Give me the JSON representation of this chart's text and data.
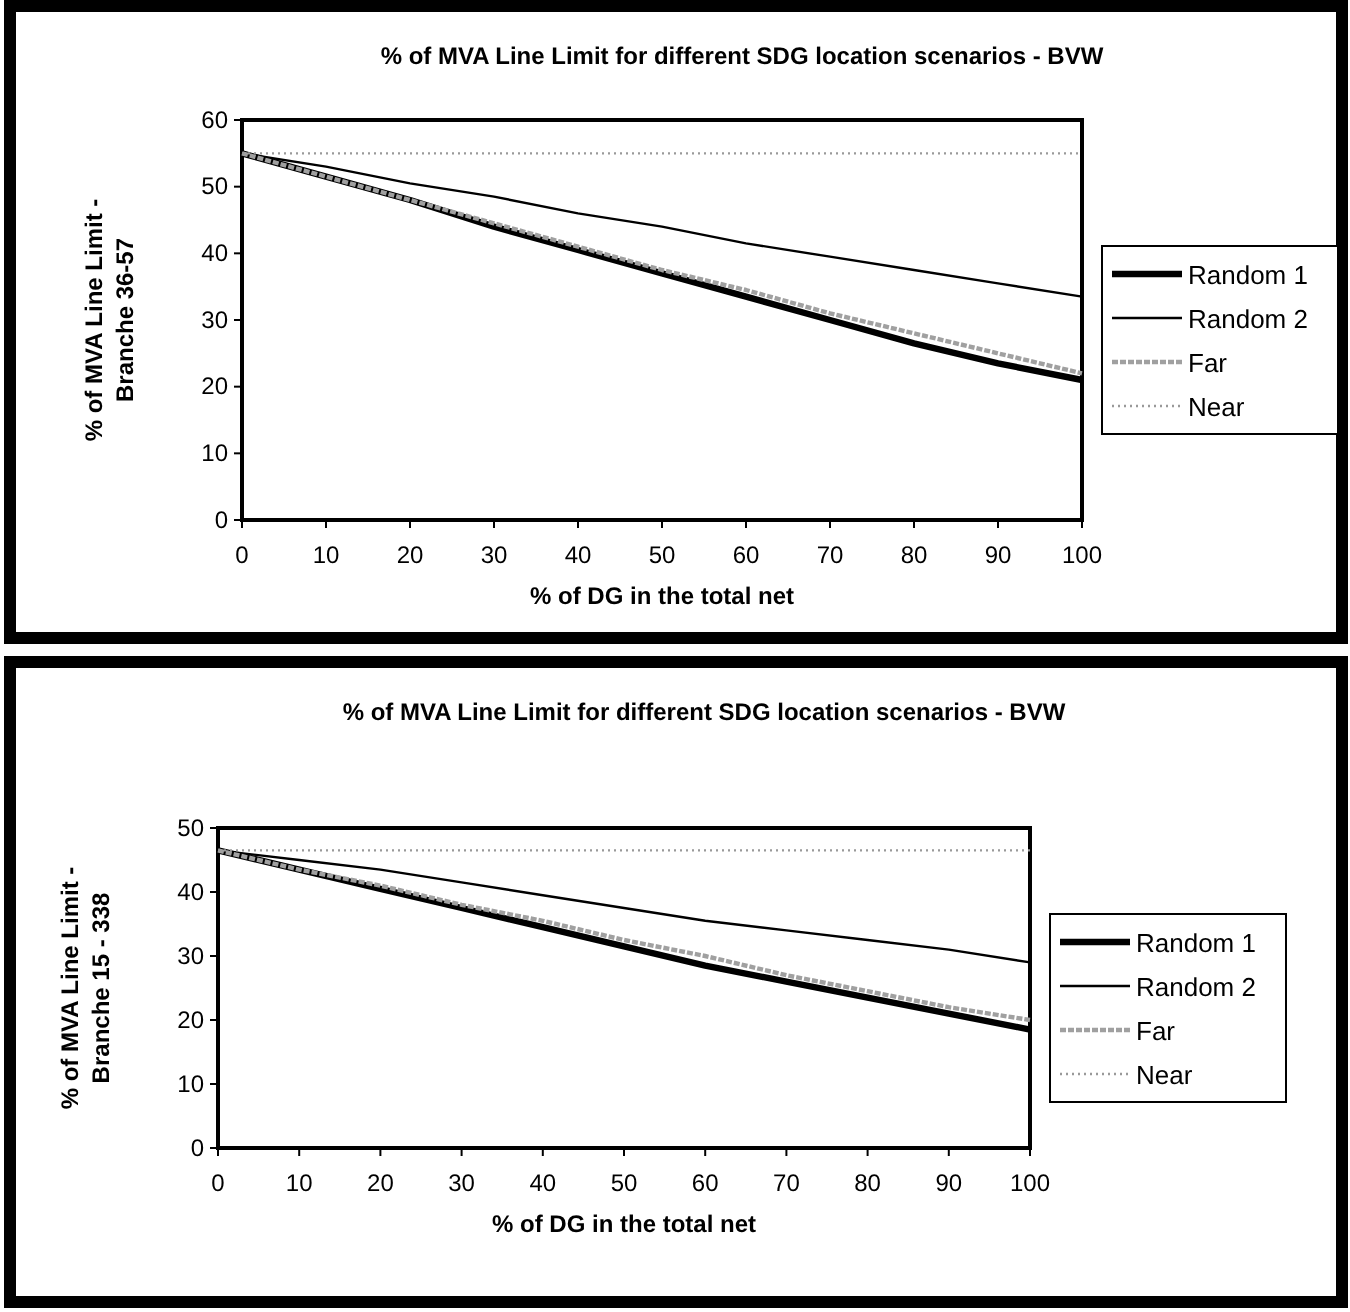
{
  "chart_data": [
    {
      "type": "line",
      "title": "% of MVA Line Limit for different SDG location scenarios - BVW",
      "xlabel": "% of DG in the total net",
      "ylabel": "% of MVA Line Limit - Branche 36-57",
      "x": [
        0,
        10,
        20,
        30,
        40,
        50,
        60,
        70,
        80,
        90,
        100
      ],
      "xlim": [
        0,
        100
      ],
      "xticks": [
        0,
        10,
        20,
        30,
        40,
        50,
        60,
        70,
        80,
        90,
        100
      ],
      "ylim": [
        0,
        60
      ],
      "yticks": [
        0,
        10,
        20,
        30,
        40,
        50,
        60
      ],
      "legend": "right",
      "series": [
        {
          "name": "Random 1",
          "color": "#000000",
          "line_style": "solid",
          "values": [
            55,
            51.5,
            48,
            44,
            40.5,
            37,
            33.5,
            30,
            26.5,
            23.5,
            21
          ]
        },
        {
          "name": "Random 2",
          "color": "#000000",
          "line_style": "solid",
          "values": [
            55,
            53,
            50.5,
            48.5,
            46,
            44,
            41.5,
            39.5,
            37.5,
            35.5,
            33.5
          ]
        },
        {
          "name": "Far",
          "color": "#a0a0a0",
          "line_style": "dashed",
          "values": [
            55,
            51.5,
            48,
            44.5,
            41,
            37.5,
            34.5,
            31,
            28,
            25,
            22
          ]
        },
        {
          "name": "Near",
          "color": "#999999",
          "line_style": "dotted",
          "values": [
            55,
            55,
            55,
            55,
            55,
            55,
            55,
            55,
            55,
            55,
            55
          ]
        }
      ]
    },
    {
      "type": "line",
      "title": "% of MVA Line Limit for different SDG location scenarios - BVW",
      "xlabel": "% of DG in the total net",
      "ylabel": "% of MVA Line Limit - Branche 15 - 338",
      "x": [
        0,
        10,
        20,
        30,
        40,
        50,
        60,
        70,
        80,
        90,
        100
      ],
      "xlim": [
        0,
        100
      ],
      "xticks": [
        0,
        10,
        20,
        30,
        40,
        50,
        60,
        70,
        80,
        90,
        100
      ],
      "ylim": [
        0,
        50
      ],
      "yticks": [
        0,
        10,
        20,
        30,
        40,
        50
      ],
      "legend": "right",
      "series": [
        {
          "name": "Random 1",
          "color": "#000000",
          "line_style": "solid",
          "values": [
            46.5,
            43.5,
            40.5,
            37.5,
            34.5,
            31.5,
            28.5,
            26,
            23.5,
            21,
            18.5
          ]
        },
        {
          "name": "Random 2",
          "color": "#000000",
          "line_style": "solid",
          "values": [
            46.5,
            45,
            43.5,
            41.5,
            39.5,
            37.5,
            35.5,
            34,
            32.5,
            31,
            29
          ]
        },
        {
          "name": "Far",
          "color": "#a0a0a0",
          "line_style": "dashed",
          "values": [
            46.5,
            43.5,
            41,
            38,
            35.5,
            32.5,
            30,
            27,
            24.5,
            22,
            20
          ]
        },
        {
          "name": "Near",
          "color": "#999999",
          "line_style": "dotted",
          "values": [
            46.5,
            46.5,
            46.5,
            46.5,
            46.5,
            46.5,
            46.5,
            46.5,
            46.5,
            46.5,
            46.5
          ]
        }
      ]
    }
  ]
}
